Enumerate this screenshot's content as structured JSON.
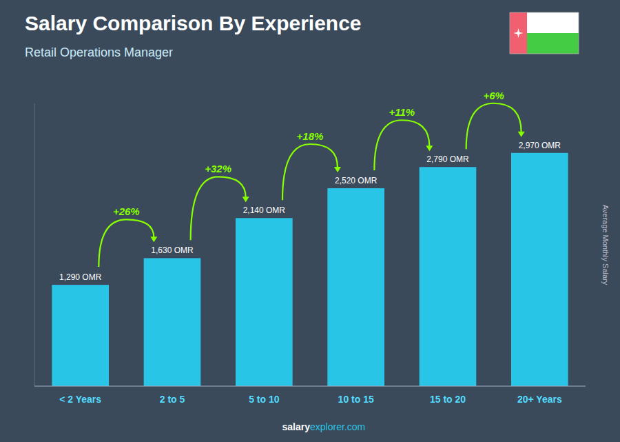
{
  "chart_data": {
    "type": "bar",
    "title": "Salary Comparison By Experience",
    "subtitle": "Retail Operations Manager",
    "categories": [
      "< 2 Years",
      "2 to 5",
      "5 to 10",
      "10 to 15",
      "15 to 20",
      "20+ Years"
    ],
    "values": [
      1290,
      1630,
      2140,
      2520,
      2790,
      2970
    ],
    "value_labels": [
      "1,290 OMR",
      "1,630 OMR",
      "2,140 OMR",
      "2,520 OMR",
      "2,790 OMR",
      "2,970 OMR"
    ],
    "data_labels": true,
    "annotations": [
      "+26%",
      "+32%",
      "+18%",
      "+11%",
      "+6%"
    ],
    "ylabel": "Average Monthly Salary",
    "footer": [
      "salary",
      "explorer.com"
    ],
    "color": "#29c5e6",
    "ylim": [
      0,
      3600
    ],
    "tick_labels": "x",
    "grid": false
  }
}
